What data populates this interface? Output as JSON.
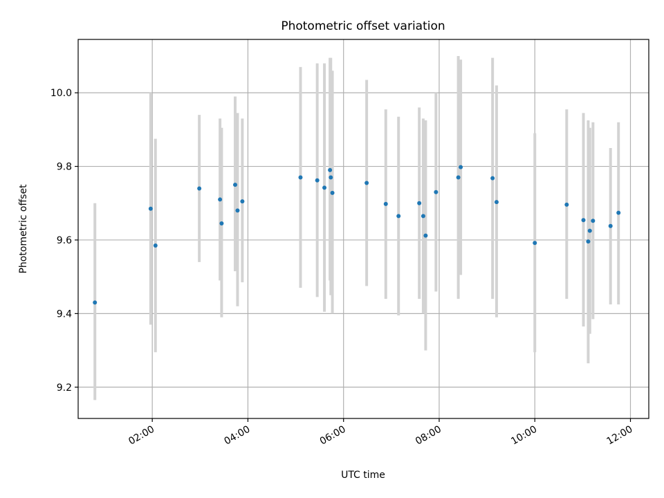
{
  "chart_data": {
    "type": "scatter",
    "title": "Photometric offset variation",
    "xlabel": "UTC time",
    "ylabel": "Photometric offset",
    "xlim": [
      "00:27",
      "12:23"
    ],
    "ylim": [
      9.115,
      10.145
    ],
    "x_ticks": [
      "02:00",
      "04:00",
      "06:00",
      "08:00",
      "10:00",
      "12:00"
    ],
    "y_ticks": [
      9.2,
      9.4,
      9.6,
      9.8,
      10.0
    ],
    "y_tick_labels": [
      "9.2",
      "9.4",
      "9.6",
      "9.8",
      "10.0"
    ],
    "grid": true,
    "legend": "none",
    "colors": {
      "point": "#1f77b4",
      "errorbar": "#d3d3d3",
      "grid": "#b0b0b0"
    },
    "points": [
      {
        "x": "00:48",
        "y": 9.43,
        "y_low": 9.165,
        "y_high": 9.7
      },
      {
        "x": "01:58",
        "y": 9.685,
        "y_low": 9.37,
        "y_high": 10.0
      },
      {
        "x": "02:04",
        "y": 9.585,
        "y_low": 9.295,
        "y_high": 9.875
      },
      {
        "x": "02:59",
        "y": 9.74,
        "y_low": 9.54,
        "y_high": 9.94
      },
      {
        "x": "03:25",
        "y": 9.71,
        "y_low": 9.49,
        "y_high": 9.93
      },
      {
        "x": "03:27",
        "y": 9.645,
        "y_low": 9.39,
        "y_high": 9.905
      },
      {
        "x": "03:44",
        "y": 9.75,
        "y_low": 9.515,
        "y_high": 9.99
      },
      {
        "x": "03:47",
        "y": 9.68,
        "y_low": 9.42,
        "y_high": 9.945
      },
      {
        "x": "03:53",
        "y": 9.705,
        "y_low": 9.485,
        "y_high": 9.93
      },
      {
        "x": "05:06",
        "y": 9.77,
        "y_low": 9.47,
        "y_high": 10.07
      },
      {
        "x": "05:27",
        "y": 9.762,
        "y_low": 9.445,
        "y_high": 10.08
      },
      {
        "x": "05:36",
        "y": 9.742,
        "y_low": 9.405,
        "y_high": 10.08
      },
      {
        "x": "05:43",
        "y": 9.79,
        "y_low": 9.49,
        "y_high": 10.095
      },
      {
        "x": "05:44",
        "y": 9.77,
        "y_low": 9.45,
        "y_high": 10.095
      },
      {
        "x": "05:46",
        "y": 9.728,
        "y_low": 9.4,
        "y_high": 10.06
      },
      {
        "x": "06:29",
        "y": 9.755,
        "y_low": 9.475,
        "y_high": 10.035
      },
      {
        "x": "06:53",
        "y": 9.698,
        "y_low": 9.44,
        "y_high": 9.955
      },
      {
        "x": "07:09",
        "y": 9.665,
        "y_low": 9.395,
        "y_high": 9.935
      },
      {
        "x": "07:35",
        "y": 9.7,
        "y_low": 9.44,
        "y_high": 9.96
      },
      {
        "x": "07:40",
        "y": 9.665,
        "y_low": 9.4,
        "y_high": 9.93
      },
      {
        "x": "07:43",
        "y": 9.612,
        "y_low": 9.3,
        "y_high": 9.925
      },
      {
        "x": "07:56",
        "y": 9.73,
        "y_low": 9.46,
        "y_high": 10.0
      },
      {
        "x": "08:24",
        "y": 9.77,
        "y_low": 9.44,
        "y_high": 10.1
      },
      {
        "x": "08:27",
        "y": 9.798,
        "y_low": 9.505,
        "y_high": 10.09
      },
      {
        "x": "09:07",
        "y": 9.768,
        "y_low": 9.44,
        "y_high": 10.095
      },
      {
        "x": "09:12",
        "y": 9.703,
        "y_low": 9.39,
        "y_high": 10.02
      },
      {
        "x": "10:00",
        "y": 9.592,
        "y_low": 9.295,
        "y_high": 9.89
      },
      {
        "x": "10:40",
        "y": 9.696,
        "y_low": 9.44,
        "y_high": 9.955
      },
      {
        "x": "11:01",
        "y": 9.654,
        "y_low": 9.365,
        "y_high": 9.945
      },
      {
        "x": "11:07",
        "y": 9.596,
        "y_low": 9.265,
        "y_high": 9.925
      },
      {
        "x": "11:09",
        "y": 9.625,
        "y_low": 9.345,
        "y_high": 9.905
      },
      {
        "x": "11:13",
        "y": 9.652,
        "y_low": 9.385,
        "y_high": 9.92
      },
      {
        "x": "11:35",
        "y": 9.638,
        "y_low": 9.425,
        "y_high": 9.85
      },
      {
        "x": "11:45",
        "y": 9.674,
        "y_low": 9.425,
        "y_high": 9.92
      }
    ]
  }
}
